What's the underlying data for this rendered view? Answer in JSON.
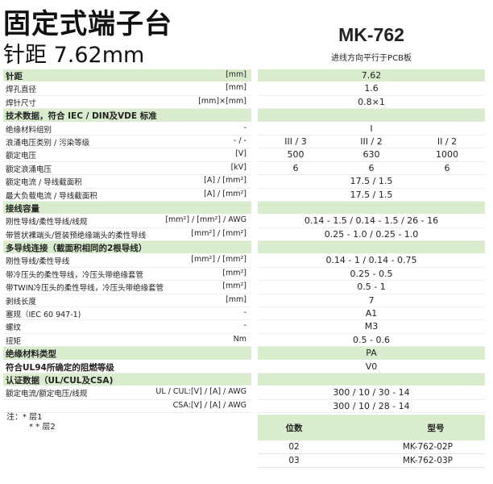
{
  "header": {
    "title": "固定式端子台",
    "subtitle": "针距  7.62mm",
    "model": "MK-762",
    "model_desc": "进线方向平行于PCB板"
  },
  "colors": {
    "section_bg": "#d9ecce"
  },
  "rows": [
    {
      "type": "g",
      "label": "针距",
      "unit": "[mm]",
      "values": [
        "7.62"
      ]
    },
    {
      "type": "n",
      "label": "焊孔直径",
      "unit": "[mm]",
      "values": [
        "1.6"
      ]
    },
    {
      "type": "n",
      "label": "焊针尺寸",
      "unit": "[mm]×[mm]",
      "values": [
        "0.8×1"
      ]
    },
    {
      "type": "g",
      "label": "技术数据，符合 IEC / DIN及VDE 标准",
      "unit": "",
      "values": [
        ""
      ]
    },
    {
      "type": "n",
      "label": "绝缘材料组别",
      "unit": "-",
      "values": [
        "I"
      ]
    },
    {
      "type": "n",
      "label": "浪涌电压类别 / 污染等级",
      "unit": "- / -",
      "values": [
        "III / 3",
        "III / 2",
        "II / 2"
      ]
    },
    {
      "type": "n",
      "label": "额定电压",
      "unit": "[V]",
      "values": [
        "500",
        "630",
        "1000"
      ]
    },
    {
      "type": "n",
      "label": "额定浪涌电压",
      "unit": "[kV]",
      "values": [
        "6",
        "6",
        "6"
      ]
    },
    {
      "type": "n",
      "label": "额定电流 / 导线截面积",
      "unit": "[A] / [mm²]",
      "values": [
        "17.5 / 1.5"
      ]
    },
    {
      "type": "n",
      "label": "最大负载电流 / 导线截面积",
      "unit": "[A] / [mm²]",
      "values": [
        "17.5 / 1.5"
      ]
    },
    {
      "type": "g",
      "label": "接线容量",
      "unit": "",
      "values": [
        ""
      ]
    },
    {
      "type": "n",
      "label": "刚性导线/柔性导线/线规",
      "unit": "[mm²] / [mm²] / AWG",
      "values": [
        "0.14 - 1.5 / 0.14 - 1.5 / 26 - 16"
      ]
    },
    {
      "type": "n",
      "label": "带管状裸端头/管装预绝缘端头的柔性导线",
      "unit": "[mm²] / [mm²]",
      "values": [
        "0.25 - 1.0 / 0.25 - 1.0"
      ]
    },
    {
      "type": "g",
      "label": "多导线连接（截面积相同的2根导线）",
      "unit": "",
      "values": [
        ""
      ]
    },
    {
      "type": "n",
      "label": "刚性导线/柔性导线",
      "unit": "[mm²] / [mm²]",
      "values": [
        "0.14 - 1 / 0.14 - 0.75"
      ]
    },
    {
      "type": "n",
      "label": "带冷压头的柔性导线，冷压头带绝缘套管",
      "unit": "[mm²]",
      "values": [
        "0.25 - 0.5"
      ]
    },
    {
      "type": "n",
      "label": "带TWIN冷压头的柔性导线，冷压头带绝缘套管",
      "unit": "[mm²]",
      "values": [
        "0.5 - 1"
      ]
    },
    {
      "type": "n",
      "label": "剥线长度",
      "unit": "[mm]",
      "values": [
        "7"
      ]
    },
    {
      "type": "n",
      "label": "塞规（IEC 60 947-1)",
      "unit": "-",
      "values": [
        "A1"
      ]
    },
    {
      "type": "n",
      "label": "螺纹",
      "unit": "-",
      "values": [
        "M3"
      ]
    },
    {
      "type": "n",
      "label": "扭矩",
      "unit": "Nm",
      "values": [
        "0.5 - 0.6"
      ]
    },
    {
      "type": "g",
      "label": "绝缘材料类型",
      "unit": "",
      "values": [
        "PA"
      ]
    },
    {
      "type": "b",
      "label": "符合UL94所确定的阻燃等级",
      "unit": "",
      "values": [
        "V0"
      ]
    },
    {
      "type": "g",
      "label": "认证数据（UL/CUL及CSA)",
      "unit": "",
      "values": [
        ""
      ]
    },
    {
      "type": "n",
      "label": "额定电流/额定电压/线规",
      "unit": "UL / CUL:[V] / [A] / AWG",
      "values": [
        "300 / 10 / 30 - 14"
      ]
    },
    {
      "type": "n",
      "label": "",
      "unit": "CSA:[V] / [A] / AWG",
      "values": [
        "300 / 10 / 28 - 14"
      ]
    }
  ],
  "notes": {
    "line1": "注：* 层1",
    "line2": "* * 层2"
  },
  "products": {
    "headers": [
      "位数",
      "型号"
    ],
    "rows": [
      [
        "02",
        "MK-762-02P"
      ],
      [
        "03",
        "MK-762-03P"
      ]
    ]
  }
}
